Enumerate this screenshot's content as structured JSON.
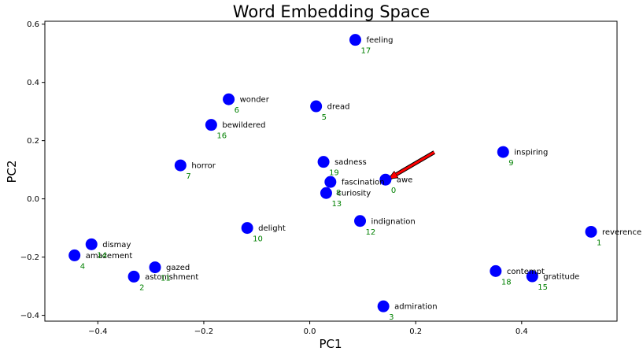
{
  "chart_data": {
    "type": "scatter",
    "title": "Word Embedding Space",
    "xlabel": "PC1",
    "ylabel": "PC2",
    "xlim": [
      -0.5,
      0.58
    ],
    "ylim": [
      -0.42,
      0.61
    ],
    "xticks": [
      -0.4,
      -0.2,
      0.0,
      0.2,
      0.4
    ],
    "xtick_labels": [
      "−0.4",
      "−0.2",
      "0.0",
      "0.2",
      "0.4"
    ],
    "yticks": [
      -0.4,
      -0.2,
      0.0,
      0.2,
      0.4,
      0.6
    ],
    "ytick_labels": [
      "−0.4",
      "−0.2",
      "0.0",
      "0.2",
      "0.4",
      "0.6"
    ],
    "grid": false,
    "point_color": "#0000ff",
    "word_color": "#000000",
    "index_color": "#008000",
    "highlight_color": "#ff0000",
    "highlight_index": 0,
    "arrow": {
      "from": [
        0.235,
        0.16
      ],
      "to": [
        0.152,
        0.072
      ],
      "color": "#ff0000"
    },
    "points": [
      {
        "index": 0,
        "word": "awe",
        "x": 0.143,
        "y": 0.066
      },
      {
        "index": 1,
        "word": "reverence",
        "x": 0.531,
        "y": -0.113
      },
      {
        "index": 2,
        "word": "astonishment",
        "x": -0.332,
        "y": -0.267
      },
      {
        "index": 3,
        "word": "admiration",
        "x": 0.139,
        "y": -0.369
      },
      {
        "index": 4,
        "word": "amazement",
        "x": -0.444,
        "y": -0.194
      },
      {
        "index": 5,
        "word": "dread",
        "x": 0.012,
        "y": 0.318
      },
      {
        "index": 6,
        "word": "wonder",
        "x": -0.153,
        "y": 0.342
      },
      {
        "index": 7,
        "word": "horror",
        "x": -0.244,
        "y": 0.115
      },
      {
        "index": 8,
        "word": "fascination",
        "x": 0.039,
        "y": 0.058
      },
      {
        "index": 9,
        "word": "inspiring",
        "x": 0.365,
        "y": 0.161
      },
      {
        "index": 10,
        "word": "delight",
        "x": -0.118,
        "y": -0.1
      },
      {
        "index": 11,
        "word": "gazed",
        "x": -0.292,
        "y": -0.235
      },
      {
        "index": 12,
        "word": "indignation",
        "x": 0.095,
        "y": -0.076
      },
      {
        "index": 13,
        "word": "curiosity",
        "x": 0.031,
        "y": 0.02
      },
      {
        "index": 14,
        "word": "dismay",
        "x": -0.412,
        "y": -0.156
      },
      {
        "index": 15,
        "word": "gratitude",
        "x": 0.42,
        "y": -0.266
      },
      {
        "index": 16,
        "word": "bewildered",
        "x": -0.186,
        "y": 0.254
      },
      {
        "index": 17,
        "word": "feeling",
        "x": 0.086,
        "y": 0.546
      },
      {
        "index": 18,
        "word": "contempt",
        "x": 0.351,
        "y": -0.248
      },
      {
        "index": 19,
        "word": "sadness",
        "x": 0.026,
        "y": 0.127
      }
    ]
  }
}
